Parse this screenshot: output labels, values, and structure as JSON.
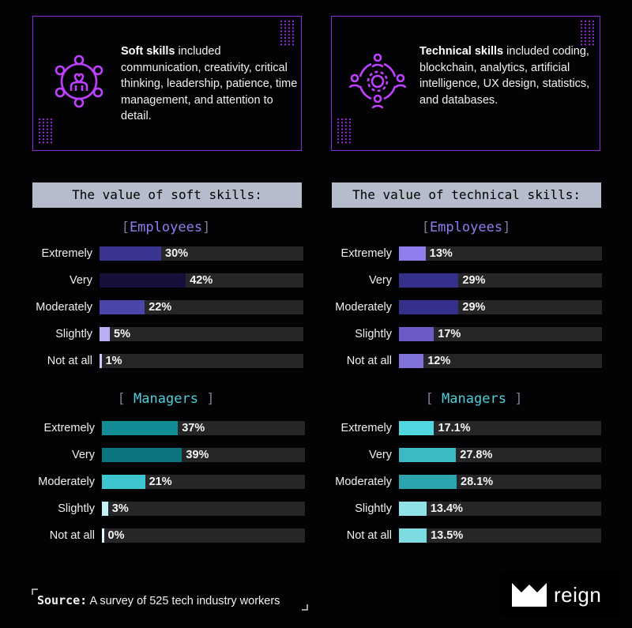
{
  "cards": [
    {
      "bold": "Soft skills",
      "text": " included communication, creativity, critical thinking, leadership, patience, time management, and attention to detail.",
      "icon": "people-heart-circle-icon"
    },
    {
      "bold": "Technical skills",
      "text": " included coding, blockchain, analytics, artificial intelligence, UX design, statistics, and databases.",
      "icon": "gear-people-network-icon"
    }
  ],
  "banners": {
    "soft": "The value of soft skills:",
    "technical": "The value of technical skills:"
  },
  "groups": {
    "employees": "Employees",
    "managers": "Managers"
  },
  "bracket_open": "[",
  "bracket_close": "]",
  "chart_data": [
    {
      "type": "bar",
      "orientation": "horizontal",
      "title": "The value of soft skills:",
      "group": "Employees",
      "categories": [
        "Extremely",
        "Very",
        "Moderately",
        "Slightly",
        "Not at all"
      ],
      "values": [
        30,
        42,
        22,
        5,
        1
      ],
      "labels": [
        "30%",
        "42%",
        "22%",
        "5%",
        "1%"
      ],
      "colors": [
        "#3a3590",
        "#14103a",
        "#4a47a8",
        "#b8b0f2",
        "#cfc9ff"
      ],
      "max": 100
    },
    {
      "type": "bar",
      "orientation": "horizontal",
      "title": "The value of soft skills:",
      "group": "Managers",
      "categories": [
        "Extremely",
        "Very",
        "Moderately",
        "Slightly",
        "Not at all"
      ],
      "values": [
        37,
        39,
        21,
        3,
        0
      ],
      "labels": [
        "37%",
        "39%",
        "21%",
        "3%",
        "0%"
      ],
      "colors": [
        "#138d95",
        "#0b7580",
        "#3ec6cf",
        "#c2f3f6",
        "#dff9fb"
      ],
      "max": 100
    },
    {
      "type": "bar",
      "orientation": "horizontal",
      "title": "The value of technical skills:",
      "group": "Employees",
      "categories": [
        "Extremely",
        "Very",
        "Moderately",
        "Slightly",
        "Not at all"
      ],
      "values": [
        13,
        29,
        29,
        17,
        12
      ],
      "labels": [
        "13%",
        "29%",
        "29%",
        "17%",
        "12%"
      ],
      "colors": [
        "#8f7fee",
        "#35308a",
        "#35308a",
        "#6a5cc4",
        "#7f73d8"
      ],
      "max": 100
    },
    {
      "type": "bar",
      "orientation": "horizontal",
      "title": "The value of technical skills:",
      "group": "Managers",
      "categories": [
        "Extremely",
        "Very",
        "Moderately",
        "Slightly",
        "Not at all"
      ],
      "values": [
        17.1,
        27.8,
        28.1,
        13.4,
        13.5
      ],
      "labels": [
        "17.1%",
        "27.8%",
        "28.1%",
        "13.4%",
        "13.5%"
      ],
      "colors": [
        "#4fd8df",
        "#3cb9c2",
        "#2ba4ad",
        "#8fe3e8",
        "#7fdbe2"
      ],
      "max": 100
    }
  ],
  "source": {
    "label": "Source:",
    "text": "A survey of 525 tech industry workers"
  },
  "logo": {
    "word": "reign",
    "icon": "crown-icon"
  },
  "colors": {
    "accent_purple": "#8a2be2",
    "employees_label": "#8f7fee",
    "managers_label": "#4fd0d8",
    "track": "#262629"
  }
}
